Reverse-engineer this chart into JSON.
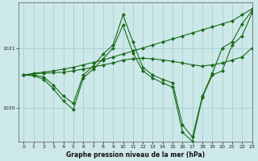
{
  "background_color": "#cce8e8",
  "grid_color": "#aad4d4",
  "line_color": "#1a6b1a",
  "title": "Graphe pression niveau de la mer (hPa)",
  "xlim": [
    -0.5,
    23
  ],
  "ylim": [
    1019.45,
    1021.75
  ],
  "yticks": [
    1020.0,
    1021.0
  ],
  "xticks": [
    0,
    1,
    2,
    3,
    4,
    5,
    6,
    7,
    8,
    9,
    10,
    11,
    12,
    13,
    14,
    15,
    16,
    17,
    18,
    19,
    20,
    21,
    22,
    23
  ],
  "series": [
    {
      "x": [
        0,
        1,
        2,
        3,
        4,
        5,
        6,
        7,
        8,
        9,
        10,
        11,
        12,
        13,
        14,
        15,
        16,
        17,
        18,
        19,
        20,
        21,
        22,
        23
      ],
      "y": [
        1020.55,
        1020.58,
        1020.6,
        1020.62,
        1020.65,
        1020.68,
        1020.72,
        1020.76,
        1020.8,
        1020.85,
        1020.9,
        1020.95,
        1021.0,
        1021.05,
        1021.1,
        1021.15,
        1021.2,
        1021.25,
        1021.3,
        1021.35,
        1021.4,
        1021.45,
        1021.55,
        1021.65
      ],
      "marker": "D",
      "linewidth": 0.8,
      "markersize": 2.0
    },
    {
      "x": [
        0,
        1,
        2,
        3,
        4,
        5,
        6,
        7,
        8,
        9,
        10,
        11,
        12,
        13,
        14,
        15,
        16,
        17,
        18,
        19,
        20,
        21,
        22,
        23
      ],
      "y": [
        1020.55,
        1020.57,
        1020.58,
        1020.59,
        1020.6,
        1020.62,
        1020.65,
        1020.68,
        1020.72,
        1020.75,
        1020.8,
        1020.82,
        1020.83,
        1020.82,
        1020.8,
        1020.78,
        1020.75,
        1020.72,
        1020.7,
        1020.72,
        1020.75,
        1020.8,
        1020.85,
        1021.0
      ],
      "marker": "D",
      "linewidth": 0.8,
      "markersize": 2.0
    },
    {
      "x": [
        0,
        1,
        2,
        3,
        4,
        5,
        6,
        7,
        8,
        9,
        10,
        11,
        12,
        13,
        14,
        15,
        16,
        17,
        18,
        19,
        20,
        21,
        22,
        23
      ],
      "y": [
        1020.55,
        1020.55,
        1020.52,
        1020.38,
        1020.2,
        1020.08,
        1020.55,
        1020.7,
        1020.9,
        1021.05,
        1021.55,
        1021.1,
        1020.68,
        1020.55,
        1020.48,
        1020.42,
        1019.72,
        1019.52,
        1020.2,
        1020.58,
        1021.0,
        1021.1,
        1021.4,
        1021.62
      ],
      "marker": "D",
      "linewidth": 0.8,
      "markersize": 2.0
    },
    {
      "x": [
        0,
        1,
        2,
        3,
        4,
        5,
        6,
        7,
        8,
        9,
        10,
        11,
        12,
        13,
        14,
        15,
        16,
        17,
        18,
        19,
        20,
        21,
        22,
        23
      ],
      "y": [
        1020.55,
        1020.54,
        1020.48,
        1020.32,
        1020.12,
        1019.98,
        1020.5,
        1020.65,
        1020.82,
        1021.0,
        1021.38,
        1020.92,
        1020.62,
        1020.5,
        1020.42,
        1020.35,
        1019.6,
        1019.45,
        1020.18,
        1020.55,
        1020.62,
        1021.05,
        1021.2,
        1021.58
      ],
      "marker": "D",
      "linewidth": 0.8,
      "markersize": 2.0
    }
  ]
}
